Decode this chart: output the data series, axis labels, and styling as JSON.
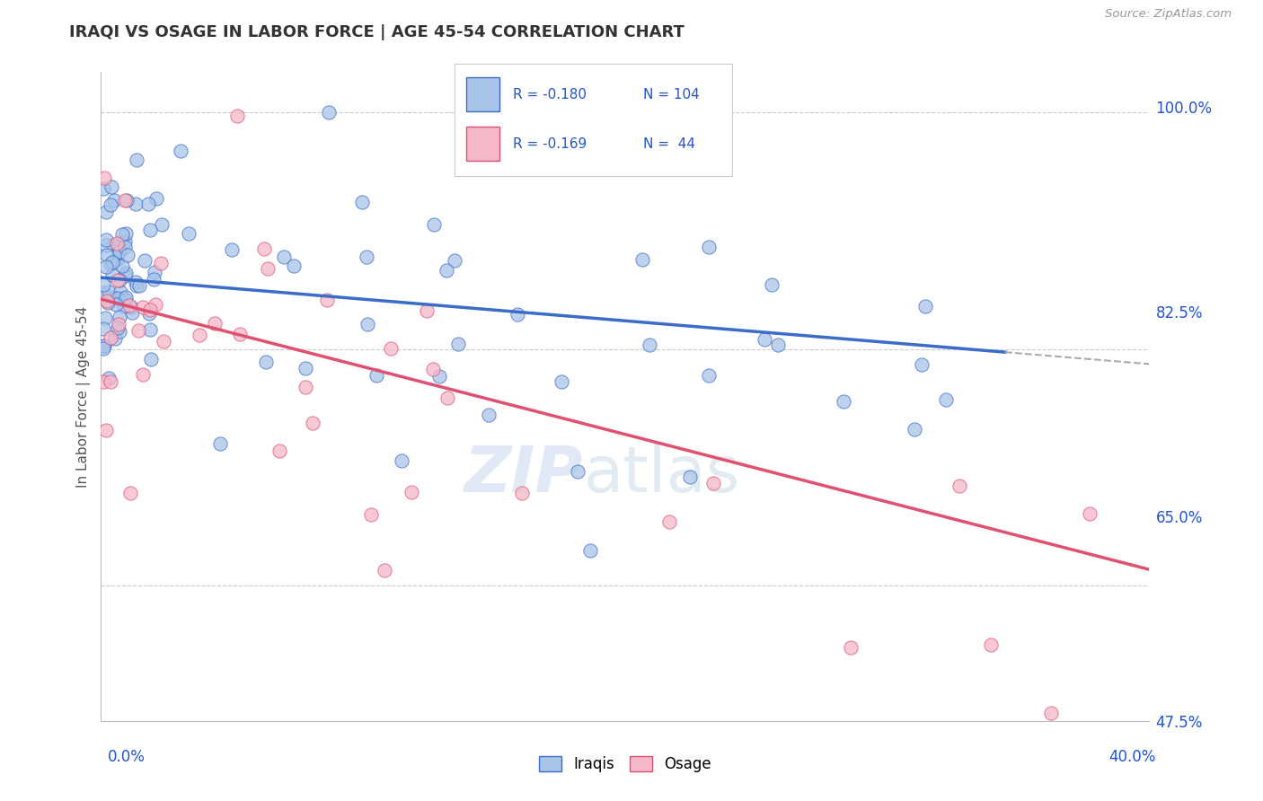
{
  "title": "IRAQI VS OSAGE IN LABOR FORCE | AGE 45-54 CORRELATION CHART",
  "source": "Source: ZipAtlas.com",
  "ylabel": "In Labor Force | Age 45-54",
  "xlim": [
    0.0,
    0.4
  ],
  "ylim": [
    0.55,
    1.03
  ],
  "iraqi_color": "#a8c4e8",
  "iraqi_edge_color": "#3a6cc8",
  "osage_color": "#f5b8c8",
  "osage_edge_color": "#e05070",
  "iraqi_line_color": "#3a6cc8",
  "osage_line_color": "#e05070",
  "dashed_line_color": "#aaaaaa",
  "legend_R_iraqi": "-0.180",
  "legend_N_iraqi": "104",
  "legend_R_osage": "-0.169",
  "legend_N_osage": "44",
  "legend_text_color": "#2255cc",
  "background_color": "#ffffff",
  "grid_color": "#cccccc",
  "title_color": "#333333",
  "watermark_zip": "ZIP",
  "watermark_atlas": "atlas",
  "yticks": [
    0.65,
    0.825,
    1.0
  ],
  "ytick_labels": [
    "65.0%",
    "82.5%",
    "100.0%"
  ],
  "extra_yticks": [
    0.475
  ],
  "extra_ytick_labels": [
    "47.5%"
  ]
}
